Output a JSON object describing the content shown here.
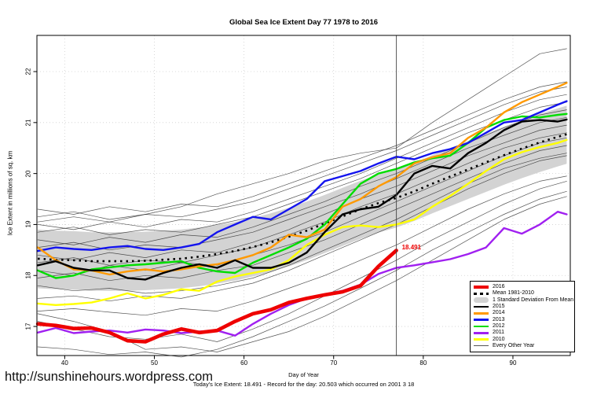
{
  "footer": {
    "website": "http://sunshinehours.wordpress.com",
    "caption": "Today's Ice Extent: 18.491  - Record for the day: 20.503 which occurred on 2001 3 18"
  },
  "chart_data": {
    "type": "line",
    "title": "Global Sea Ice Extent Day 77 1978 to 2016",
    "xlabel": "Day of Year",
    "ylabel": "Ice Extent in millions of sq. km",
    "xlim": [
      36.9,
      96.4
    ],
    "ylim": [
      16.43,
      22.71
    ],
    "x_ticks": [
      40,
      50,
      60,
      70,
      80,
      90
    ],
    "y_ticks": [
      17,
      18,
      19,
      20,
      21,
      22
    ],
    "grid": true,
    "legend_position": "bottom-right",
    "vline_day": 77,
    "annotation": {
      "label": "18.491",
      "day": 77,
      "value": 18.491,
      "color": "#EE0000"
    },
    "days": [
      37,
      39,
      41,
      43,
      45,
      47,
      49,
      51,
      53,
      55,
      57,
      59,
      61,
      63,
      65,
      67,
      69,
      71,
      73,
      75,
      77,
      79,
      81,
      83,
      85,
      87,
      89,
      91,
      93,
      95,
      96
    ],
    "series": [
      {
        "name": "2016",
        "color": "#EE0000",
        "width": 4.6,
        "values": [
          17.05,
          17.02,
          16.96,
          16.97,
          16.88,
          16.72,
          16.7,
          16.85,
          16.95,
          16.88,
          16.92,
          17.1,
          17.25,
          17.33,
          17.47,
          17.55,
          17.62,
          17.68,
          17.8,
          18.18,
          18.491
        ]
      },
      {
        "name": "Mean 1981-2010",
        "color": "#000000",
        "style": "dashed",
        "width": 2.6,
        "values": [
          18.33,
          18.31,
          18.3,
          18.28,
          18.28,
          18.28,
          18.29,
          18.31,
          18.33,
          18.37,
          18.42,
          18.48,
          18.56,
          18.65,
          18.76,
          18.88,
          19.02,
          19.16,
          19.3,
          19.42,
          19.52,
          19.65,
          19.8,
          19.94,
          20.08,
          20.22,
          20.36,
          20.49,
          20.61,
          20.72,
          20.77
        ]
      },
      {
        "name": "2015",
        "color": "#000000",
        "width": 2.4,
        "values": [
          18.2,
          18.28,
          18.15,
          18.1,
          18.1,
          17.95,
          17.92,
          18.05,
          18.15,
          18.22,
          18.15,
          18.3,
          18.15,
          18.15,
          18.25,
          18.45,
          18.85,
          19.2,
          19.3,
          19.35,
          19.58,
          20.0,
          20.15,
          20.1,
          20.4,
          20.6,
          20.85,
          21.02,
          21.05,
          21.02,
          21.06
        ]
      },
      {
        "name": "2014",
        "color": "#FF9900",
        "width": 2.4,
        "values": [
          18.55,
          18.3,
          18.12,
          18.1,
          18.02,
          18.08,
          18.12,
          18.08,
          18.12,
          18.18,
          18.22,
          18.3,
          18.4,
          18.55,
          18.8,
          18.75,
          18.9,
          19.35,
          19.5,
          19.75,
          19.93,
          20.2,
          20.32,
          20.4,
          20.7,
          20.9,
          21.2,
          21.4,
          21.55,
          21.7,
          21.78
        ]
      },
      {
        "name": "2013",
        "color": "#1414EE",
        "width": 2.4,
        "values": [
          18.48,
          18.55,
          18.52,
          18.5,
          18.55,
          18.58,
          18.52,
          18.5,
          18.55,
          18.62,
          18.85,
          19.0,
          19.15,
          19.1,
          19.3,
          19.5,
          19.85,
          19.95,
          20.05,
          20.2,
          20.33,
          20.28,
          20.4,
          20.48,
          20.6,
          20.8,
          21.0,
          21.05,
          21.2,
          21.35,
          21.42
        ]
      },
      {
        "name": "2012",
        "color": "#00DD00",
        "width": 2.4,
        "values": [
          18.1,
          17.95,
          18.0,
          18.12,
          18.16,
          18.2,
          18.22,
          18.25,
          18.28,
          18.15,
          18.08,
          18.05,
          18.25,
          18.4,
          18.55,
          18.72,
          19.0,
          19.4,
          19.8,
          20.0,
          20.09,
          20.22,
          20.3,
          20.35,
          20.6,
          20.9,
          21.05,
          21.12,
          21.1,
          21.15,
          21.17
        ]
      },
      {
        "name": "2011",
        "color": "#A020F0",
        "width": 2.4,
        "values": [
          16.88,
          16.97,
          16.87,
          16.9,
          16.92,
          16.88,
          16.94,
          16.92,
          16.87,
          16.9,
          16.92,
          16.82,
          17.05,
          17.25,
          17.42,
          17.55,
          17.63,
          17.7,
          17.82,
          18.03,
          18.15,
          18.2,
          18.26,
          18.32,
          18.42,
          18.55,
          18.93,
          18.82,
          19.0,
          19.25,
          19.2
        ]
      },
      {
        "name": "2010",
        "color": "#FFFF00",
        "width": 2.4,
        "values": [
          17.45,
          17.42,
          17.44,
          17.47,
          17.55,
          17.65,
          17.55,
          17.62,
          17.73,
          17.7,
          17.88,
          17.98,
          18.05,
          18.12,
          18.3,
          18.6,
          18.8,
          18.95,
          18.98,
          18.95,
          19.0,
          19.1,
          19.35,
          19.56,
          19.8,
          20.05,
          20.28,
          20.42,
          20.52,
          20.6,
          20.66
        ]
      }
    ],
    "band": {
      "name": "1 Standard Deviation From Mean",
      "color": "#D3D3D3",
      "upper": [
        18.9,
        18.88,
        18.87,
        18.85,
        18.85,
        18.85,
        18.86,
        18.88,
        18.9,
        18.94,
        18.99,
        19.05,
        19.13,
        19.22,
        19.33,
        19.45,
        19.58,
        19.72,
        19.86,
        19.98,
        20.08,
        20.21,
        20.36,
        20.5,
        20.64,
        20.78,
        20.92,
        21.05,
        21.17,
        21.28,
        21.33
      ],
      "lower": [
        17.75,
        17.73,
        17.72,
        17.7,
        17.7,
        17.7,
        17.71,
        17.73,
        17.75,
        17.79,
        17.84,
        17.9,
        17.98,
        18.07,
        18.18,
        18.3,
        18.44,
        18.58,
        18.72,
        18.84,
        18.94,
        19.07,
        19.22,
        19.36,
        19.5,
        19.64,
        19.78,
        19.91,
        20.03,
        20.14,
        20.19
      ]
    },
    "other_years": {
      "name": "Every Other Year",
      "color": "#2B2B2B",
      "width": 0.7,
      "days": [
        37,
        41,
        45,
        49,
        53,
        57,
        61,
        65,
        69,
        73,
        77,
        81,
        85,
        89,
        93,
        96
      ],
      "series": [
        [
          19.05,
          19.15,
          19.05,
          19.2,
          19.35,
          19.6,
          19.8,
          20.0,
          20.25,
          20.4,
          20.5,
          21.0,
          21.45,
          21.9,
          22.35,
          22.45
        ],
        [
          17.25,
          17.1,
          16.9,
          16.55,
          16.6,
          16.5,
          16.7,
          16.9,
          17.2,
          17.55,
          17.9,
          18.3,
          18.7,
          19.1,
          19.4,
          19.55
        ],
        [
          16.6,
          16.55,
          16.45,
          16.5,
          16.4,
          16.55,
          16.8,
          17.1,
          17.4,
          17.75,
          18.1,
          18.5,
          18.85,
          19.2,
          19.5,
          19.65
        ],
        [
          17.3,
          17.35,
          17.28,
          17.22,
          17.35,
          17.3,
          17.5,
          17.75,
          18.0,
          18.3,
          18.6,
          18.95,
          19.3,
          19.6,
          19.85,
          19.95
        ],
        [
          17.8,
          17.7,
          17.75,
          17.65,
          17.7,
          17.8,
          17.95,
          18.2,
          18.5,
          18.8,
          19.1,
          19.45,
          19.8,
          20.1,
          20.3,
          20.4
        ],
        [
          17.95,
          18.05,
          17.9,
          18.0,
          17.95,
          18.1,
          18.2,
          18.45,
          18.7,
          19.0,
          19.3,
          19.6,
          19.9,
          20.2,
          20.45,
          20.55
        ],
        [
          18.1,
          18.0,
          18.2,
          18.1,
          18.25,
          18.2,
          18.4,
          18.6,
          18.85,
          19.15,
          19.45,
          19.75,
          20.05,
          20.35,
          20.6,
          20.7
        ],
        [
          18.25,
          18.35,
          18.2,
          18.3,
          18.25,
          18.4,
          18.55,
          18.8,
          19.05,
          19.35,
          19.6,
          19.9,
          20.2,
          20.5,
          20.7,
          20.8
        ],
        [
          18.4,
          18.3,
          18.45,
          18.35,
          18.5,
          18.45,
          18.65,
          18.9,
          19.2,
          19.5,
          19.75,
          20.05,
          20.35,
          20.6,
          20.85,
          20.95
        ],
        [
          18.55,
          18.65,
          18.5,
          18.6,
          18.55,
          18.7,
          18.85,
          19.1,
          19.35,
          19.6,
          19.9,
          20.2,
          20.5,
          20.75,
          21.0,
          21.1
        ],
        [
          18.7,
          18.6,
          18.75,
          18.65,
          18.8,
          18.75,
          18.95,
          19.2,
          19.45,
          19.75,
          20.0,
          20.3,
          20.6,
          20.9,
          21.15,
          21.25
        ],
        [
          18.85,
          18.95,
          18.8,
          18.9,
          18.85,
          19.0,
          19.15,
          19.4,
          19.65,
          19.9,
          20.2,
          20.5,
          20.8,
          21.05,
          21.3,
          21.4
        ],
        [
          19.0,
          18.9,
          19.05,
          18.95,
          19.1,
          19.05,
          19.25,
          19.5,
          19.75,
          20.0,
          20.3,
          20.6,
          20.9,
          21.2,
          21.45,
          21.55
        ],
        [
          19.15,
          19.25,
          19.1,
          19.2,
          19.15,
          19.3,
          19.45,
          19.7,
          19.95,
          20.2,
          20.45,
          20.75,
          21.05,
          21.35,
          21.6,
          21.7
        ],
        [
          19.3,
          19.2,
          19.35,
          19.25,
          19.4,
          19.35,
          19.55,
          19.8,
          20.05,
          20.3,
          20.55,
          20.85,
          21.15,
          21.45,
          21.7,
          21.8
        ],
        [
          17.55,
          17.6,
          17.5,
          17.6,
          17.55,
          17.7,
          17.85,
          18.1,
          18.4,
          18.7,
          19.0,
          19.35,
          19.7,
          20.0,
          20.25,
          20.35
        ],
        [
          17.1,
          16.95,
          16.8,
          16.75,
          16.85,
          16.7,
          16.95,
          17.25,
          17.6,
          17.95,
          18.3,
          18.7,
          19.05,
          19.4,
          19.7,
          19.85
        ]
      ]
    },
    "legend": [
      {
        "label": "2016",
        "kind": "thick",
        "color": "#EE0000"
      },
      {
        "label": "Mean 1981-2010",
        "kind": "dashed",
        "color": "#000000"
      },
      {
        "label": "1 Standard Deviation From Mean",
        "kind": "band",
        "color": "#D3D3D3"
      },
      {
        "label": "2015",
        "kind": "line",
        "color": "#000000"
      },
      {
        "label": "2014",
        "kind": "line",
        "color": "#FF9900"
      },
      {
        "label": "2013",
        "kind": "line",
        "color": "#1414EE"
      },
      {
        "label": "2012",
        "kind": "line",
        "color": "#00DD00"
      },
      {
        "label": "2011",
        "kind": "line",
        "color": "#A020F0"
      },
      {
        "label": "2010",
        "kind": "line",
        "color": "#FFFF00"
      },
      {
        "label": "Every Other Year",
        "kind": "thin",
        "color": "#555555"
      }
    ]
  }
}
